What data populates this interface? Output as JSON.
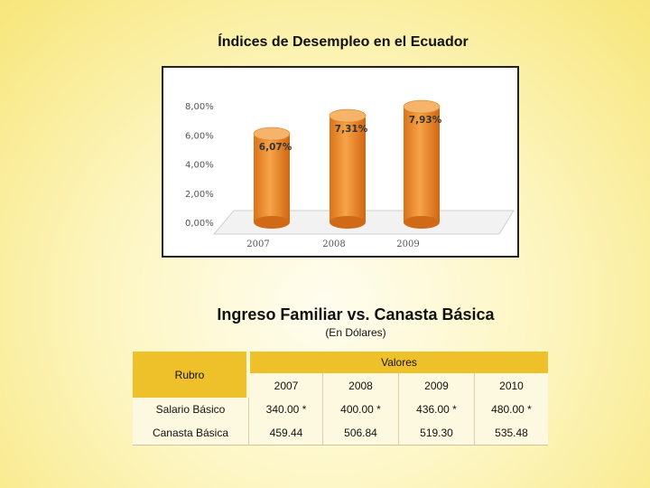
{
  "slide": {
    "title": "Índices de Desempleo en el Ecuador",
    "table_title": "Ingreso Familiar  vs. Canasta Básica",
    "table_subtitle": "(En Dólares)"
  },
  "chart_data": {
    "type": "bar",
    "style": "3d-cylinder",
    "categories": [
      "2007",
      "2008",
      "2009"
    ],
    "values": [
      6.07,
      7.31,
      7.93
    ],
    "data_labels": [
      "6,07%",
      "7,31%",
      "7,93%"
    ],
    "y_ticks": [
      "0,00%",
      "2,00%",
      "4,00%",
      "6,00%",
      "8,00%"
    ],
    "ylim": [
      0,
      8
    ],
    "bar_color": "#f0922e",
    "grid": false,
    "legend": "none"
  },
  "table": {
    "rubro_header": "Rubro",
    "valores_header": "Valores",
    "years": [
      "2007",
      "2008",
      "2009",
      "2010"
    ],
    "rows": [
      {
        "label": "Salario Básico",
        "values": [
          "340.00 *",
          "400.00 *",
          "436.00 *",
          "480.00 *"
        ]
      },
      {
        "label": "Canasta Básica",
        "values": [
          "459.44",
          "506.84",
          "519.30",
          "535.48"
        ]
      }
    ],
    "header_color": "#eec02a",
    "cell_color": "#fdf8e0"
  }
}
